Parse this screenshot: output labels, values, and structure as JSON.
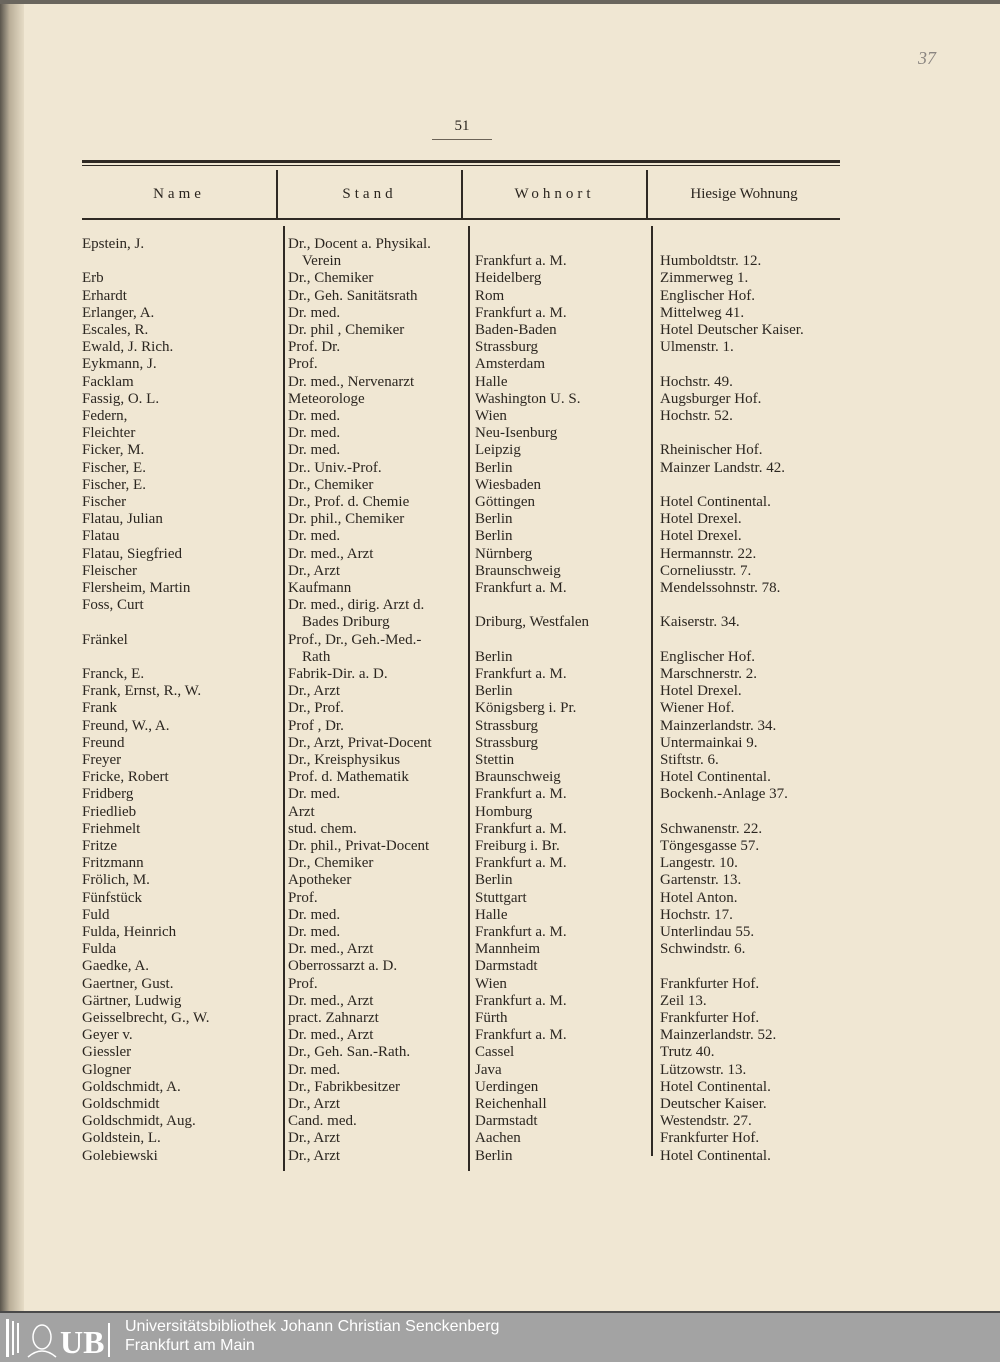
{
  "page_number": "51",
  "margin_note": "37",
  "headers": [
    "Name",
    "Stand",
    "Wohnort",
    "Hiesige Wohnung"
  ],
  "rows": [
    {
      "name": "Epstein, J.",
      "stand": [
        "Dr., Docent a. Physikal.",
        "Verein"
      ],
      "wohnort": "Frankfurt a. M.",
      "wohnung": "Humboldtstr. 12."
    },
    {
      "name": "Erb",
      "stand": [
        "Dr., Chemiker"
      ],
      "wohnort": "Heidelberg",
      "wohnung": "Zimmerweg 1."
    },
    {
      "name": "Erhardt",
      "stand": [
        "Dr., Geh. Sanitätsrath"
      ],
      "wohnort": "Rom",
      "wohnung": "Englischer Hof."
    },
    {
      "name": "Erlanger, A.",
      "stand": [
        "Dr. med."
      ],
      "wohnort": "Frankfurt a. M.",
      "wohnung": "Mittelweg 41."
    },
    {
      "name": "Escales, R.",
      "stand": [
        "Dr. phil , Chemiker"
      ],
      "wohnort": "Baden-Baden",
      "wohnung": "Hotel Deutscher Kaiser."
    },
    {
      "name": "Ewald, J. Rich.",
      "stand": [
        "Prof. Dr."
      ],
      "wohnort": "Strassburg",
      "wohnung": "Ulmenstr. 1."
    },
    {
      "name": "Eykmann, J.",
      "stand": [
        "Prof."
      ],
      "wohnort": "Amsterdam",
      "wohnung": ""
    },
    {
      "name": "Facklam",
      "stand": [
        "Dr. med., Nervenarzt"
      ],
      "wohnort": "Halle",
      "wohnung": "Hochstr. 49."
    },
    {
      "name": "Fassig, O. L.",
      "stand": [
        "Meteorologe"
      ],
      "wohnort": "Washington U. S.",
      "wohnung": "Augsburger Hof."
    },
    {
      "name": "Federn,",
      "stand": [
        "Dr. med."
      ],
      "wohnort": "Wien",
      "wohnung": "Hochstr. 52."
    },
    {
      "name": "Fleichter",
      "stand": [
        "Dr. med."
      ],
      "wohnort": "Neu-Isenburg",
      "wohnung": ""
    },
    {
      "name": "Ficker, M.",
      "stand": [
        "Dr. med."
      ],
      "wohnort": "Leipzig",
      "wohnung": "Rheinischer Hof."
    },
    {
      "name": "Fischer, E.",
      "stand": [
        "Dr.. Univ.-Prof."
      ],
      "wohnort": "Berlin",
      "wohnung": "Mainzer Landstr. 42."
    },
    {
      "name": "Fischer, E.",
      "stand": [
        "Dr., Chemiker"
      ],
      "wohnort": "Wiesbaden",
      "wohnung": ""
    },
    {
      "name": "Fischer",
      "stand": [
        "Dr., Prof. d. Chemie"
      ],
      "wohnort": "Göttingen",
      "wohnung": "Hotel Continental."
    },
    {
      "name": "Flatau, Julian",
      "stand": [
        "Dr. phil., Chemiker"
      ],
      "wohnort": "Berlin",
      "wohnung": "Hotel Drexel."
    },
    {
      "name": "Flatau",
      "stand": [
        "Dr. med."
      ],
      "wohnort": "Berlin",
      "wohnung": "Hotel Drexel."
    },
    {
      "name": "Flatau, Siegfried",
      "stand": [
        "Dr. med., Arzt"
      ],
      "wohnort": "Nürnberg",
      "wohnung": "Hermannstr. 22."
    },
    {
      "name": "Fleischer",
      "stand": [
        "Dr., Arzt"
      ],
      "wohnort": "Braunschweig",
      "wohnung": "Corneliusstr. 7."
    },
    {
      "name": "Flersheim, Martin",
      "stand": [
        "Kaufmann"
      ],
      "wohnort": "Frankfurt a. M.",
      "wohnung": "Mendelssohnstr. 78."
    },
    {
      "name": "Foss, Curt",
      "stand": [
        "Dr. med., dirig. Arzt d.",
        "Bades Driburg"
      ],
      "wohnort": "Driburg, Westfalen",
      "wohnung": "Kaiserstr. 34."
    },
    {
      "name": "Fränkel",
      "stand": [
        "Prof., Dr., Geh.-Med.-",
        "Rath"
      ],
      "wohnort": "Berlin",
      "wohnung": "Englischer Hof."
    },
    {
      "name": "Franck, E.",
      "stand": [
        "Fabrik-Dir. a. D."
      ],
      "wohnort": "Frankfurt a. M.",
      "wohnung": "Marschnerstr. 2."
    },
    {
      "name": "Frank, Ernst, R., W.",
      "stand": [
        "Dr., Arzt"
      ],
      "wohnort": "Berlin",
      "wohnung": "Hotel Drexel."
    },
    {
      "name": "Frank",
      "stand": [
        "Dr., Prof."
      ],
      "wohnort": "Königsberg i. Pr.",
      "wohnung": "Wiener Hof."
    },
    {
      "name": "Freund, W., A.",
      "stand": [
        "Prof , Dr."
      ],
      "wohnort": "Strassburg",
      "wohnung": "Mainzerlandstr. 34."
    },
    {
      "name": "Freund",
      "stand": [
        "Dr., Arzt, Privat-Docent"
      ],
      "wohnort": "Strassburg",
      "wohnung": "Untermainkai 9."
    },
    {
      "name": "Freyer",
      "stand": [
        "Dr., Kreisphysikus"
      ],
      "wohnort": "Stettin",
      "wohnung": "Stiftstr. 6."
    },
    {
      "name": "Fricke, Robert",
      "stand": [
        "Prof. d. Mathematik"
      ],
      "wohnort": "Braunschweig",
      "wohnung": "Hotel Continental."
    },
    {
      "name": "Fridberg",
      "stand": [
        "Dr. med."
      ],
      "wohnort": "Frankfurt a. M.",
      "wohnung": "Bockenh.-Anlage 37."
    },
    {
      "name": "Friedlieb",
      "stand": [
        "Arzt"
      ],
      "wohnort": "Homburg",
      "wohnung": ""
    },
    {
      "name": "Friehmelt",
      "stand": [
        "stud. chem."
      ],
      "wohnort": "Frankfurt a. M.",
      "wohnung": "Schwanenstr. 22."
    },
    {
      "name": "Fritze",
      "stand": [
        "Dr. phil., Privat-Docent"
      ],
      "wohnort": "Freiburg i. Br.",
      "wohnung": "Töngesgasse 57."
    },
    {
      "name": "Fritzmann",
      "stand": [
        "Dr., Chemiker"
      ],
      "wohnort": "Frankfurt a. M.",
      "wohnung": "Langestr. 10."
    },
    {
      "name": "Frölich, M.",
      "stand": [
        "Apotheker"
      ],
      "wohnort": "Berlin",
      "wohnung": "Gartenstr. 13."
    },
    {
      "name": "Fünfstück",
      "stand": [
        "Prof."
      ],
      "wohnort": "Stuttgart",
      "wohnung": "Hotel Anton."
    },
    {
      "name": "Fuld",
      "stand": [
        "Dr. med."
      ],
      "wohnort": "Halle",
      "wohnung": "Hochstr. 17."
    },
    {
      "name": "Fulda, Heinrich",
      "stand": [
        "Dr. med."
      ],
      "wohnort": "Frankfurt a. M.",
      "wohnung": "Unterlindau 55."
    },
    {
      "name": "Fulda",
      "stand": [
        "Dr. med., Arzt"
      ],
      "wohnort": "Mannheim",
      "wohnung": "Schwindstr. 6."
    },
    {
      "name": "Gaedke, A.",
      "stand": [
        "Oberrossarzt a. D."
      ],
      "wohnort": "Darmstadt",
      "wohnung": ""
    },
    {
      "name": "Gaertner, Gust.",
      "stand": [
        "Prof."
      ],
      "wohnort": "Wien",
      "wohnung": "Frankfurter Hof."
    },
    {
      "name": "Gärtner, Ludwig",
      "stand": [
        "Dr. med., Arzt"
      ],
      "wohnort": "Frankfurt a. M.",
      "wohnung": "Zeil 13."
    },
    {
      "name": "Geisselbrecht, G., W.",
      "stand": [
        "pract. Zahnarzt"
      ],
      "wohnort": "Fürth",
      "wohnung": "Frankfurter Hof."
    },
    {
      "name": "Geyer v.",
      "stand": [
        "Dr. med., Arzt"
      ],
      "wohnort": "Frankfurt a. M.",
      "wohnung": "Mainzerlandstr. 52."
    },
    {
      "name": "Giessler",
      "stand": [
        "Dr., Geh. San.-Rath."
      ],
      "wohnort": "Cassel",
      "wohnung": "Trutz 40."
    },
    {
      "name": "Glogner",
      "stand": [
        "Dr. med."
      ],
      "wohnort": "Java",
      "wohnung": "Lützowstr. 13."
    },
    {
      "name": "Goldschmidt, A.",
      "stand": [
        "Dr., Fabrikbesitzer"
      ],
      "wohnort": "Uerdingen",
      "wohnung": "Hotel Continental."
    },
    {
      "name": "Goldschmidt",
      "stand": [
        "Dr., Arzt"
      ],
      "wohnort": "Reichenhall",
      "wohnung": "Deutscher Kaiser."
    },
    {
      "name": "Goldschmidt, Aug.",
      "stand": [
        "Cand. med."
      ],
      "wohnort": "Darmstadt",
      "wohnung": "Westendstr. 27."
    },
    {
      "name": "Goldstein, L.",
      "stand": [
        "Dr., Arzt"
      ],
      "wohnort": "Aachen",
      "wohnung": "Frankfurter Hof."
    },
    {
      "name": "Golebiewski",
      "stand": [
        "Dr., Arzt"
      ],
      "wohnort": "Berlin",
      "wohnung": "Hotel Continental."
    }
  ],
  "footer": {
    "logo_text": "UB",
    "line1": "Universitätsbibliothek Johann Christian Senckenberg",
    "line2": "Frankfurt am Main",
    "background": "#a3a3a3"
  },
  "colors": {
    "paper": "#f0e7d3",
    "ink": "#2b2620"
  }
}
